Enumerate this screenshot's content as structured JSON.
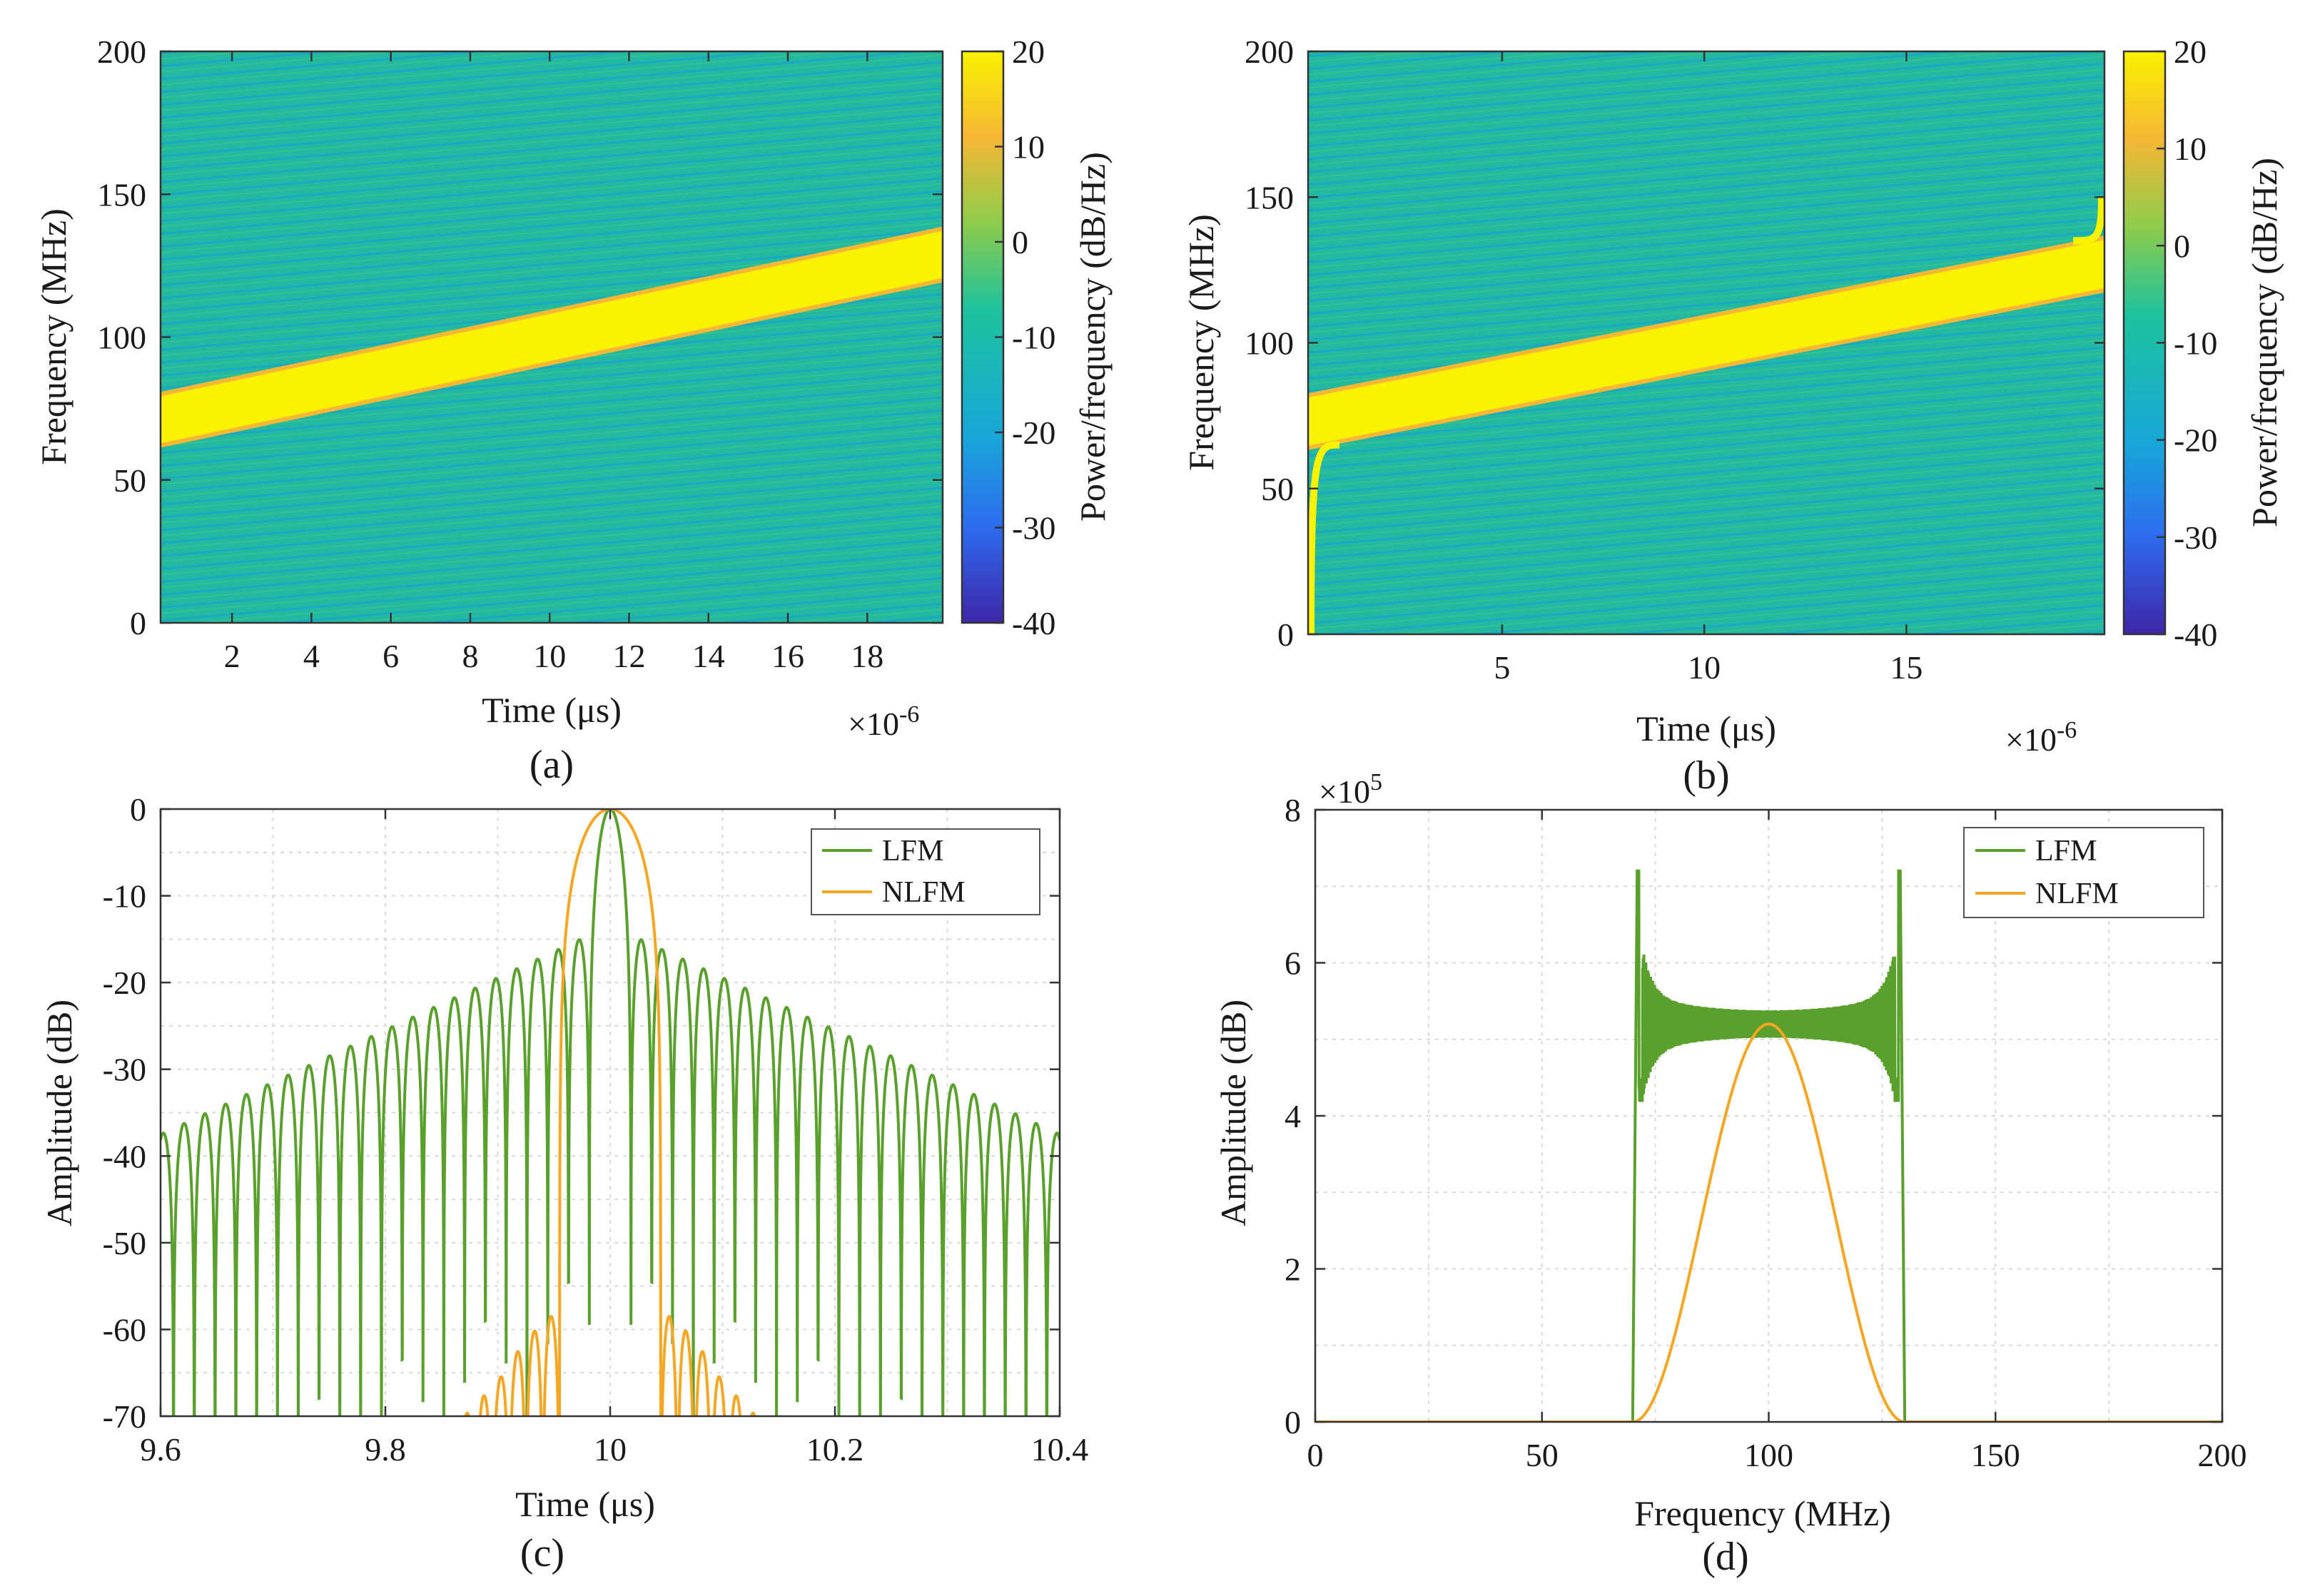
{
  "colors": {
    "lfm": "#5aa02c",
    "nlfm": "#f5a623",
    "band": "#f9f200",
    "background_field": "#22b9a0",
    "colorbar": [
      "#3e26a8",
      "#2e6cef",
      "#17a8d8",
      "#1fc29c",
      "#8fcc4b",
      "#f6b735",
      "#f9f200"
    ]
  },
  "chart_data": [
    {
      "id": "a",
      "type": "heatmap",
      "panel_label": "(a)",
      "xlabel": "Time (μs)",
      "ylabel": "Frequency (MHz)",
      "x_exponent": "×10",
      "x_exponent_power": "-6",
      "xlim": [
        0.2,
        19.9
      ],
      "ylim": [
        0,
        200
      ],
      "xticks": [
        2,
        4,
        6,
        8,
        10,
        12,
        14,
        16,
        18
      ],
      "xtick_labels": [
        "2",
        "4",
        "6",
        "8",
        "10",
        "12",
        "14",
        "16",
        "18"
      ],
      "yticks": [
        0,
        50,
        100,
        150,
        200
      ],
      "ytick_labels": [
        "0",
        "50",
        "100",
        "150",
        "200"
      ],
      "chirp": {
        "t_start": 0.2,
        "f_start": 70,
        "t_end": 19.9,
        "f_end": 130,
        "bandwidth": 18
      },
      "colorbar": {
        "label": "Power/frequency (dB/Hz)",
        "range": [
          -40,
          20
        ],
        "ticks": [
          20,
          10,
          0,
          -10,
          -20,
          -30,
          -40
        ],
        "tick_labels": [
          "20",
          "10",
          "0",
          "-10",
          "-20",
          "-30",
          "-40"
        ]
      }
    },
    {
      "id": "b",
      "type": "heatmap",
      "panel_label": "(b)",
      "xlabel": "Time (μs)",
      "ylabel": "Frequency (MHz)",
      "x_exponent": "×10",
      "x_exponent_power": "-6",
      "xlim": [
        0.2,
        19.9
      ],
      "ylim": [
        0,
        200
      ],
      "xticks": [
        5,
        10,
        15
      ],
      "xtick_labels": [
        "5",
        "10",
        "15"
      ],
      "yticks": [
        0,
        50,
        100,
        150,
        200
      ],
      "ytick_labels": [
        "0",
        "50",
        "100",
        "150",
        "200"
      ],
      "chirp": {
        "t_start": 0.2,
        "f_start": 72,
        "t_end": 19.9,
        "f_end": 128,
        "bandwidth": 18,
        "edge_spike_low": 0,
        "edge_spike_high": 150
      },
      "colorbar": {
        "label": "Power/frequency (dB/Hz)",
        "range": [
          -40,
          20
        ],
        "ticks": [
          20,
          10,
          0,
          -10,
          -20,
          -30,
          -40
        ],
        "tick_labels": [
          "20",
          "10",
          "0",
          "-10",
          "-20",
          "-30",
          "-40"
        ]
      }
    },
    {
      "id": "c",
      "type": "line",
      "panel_label": "(c)",
      "xlabel": "Time (μs)",
      "ylabel": "Amplitude (dB)",
      "xlim": [
        9.6,
        10.4
      ],
      "ylim": [
        -70,
        0
      ],
      "xticks": [
        9.6,
        9.8,
        10,
        10.2,
        10.4
      ],
      "xtick_labels": [
        "9.6",
        "9.8",
        "10",
        "10.2",
        "10.4"
      ],
      "yticks": [
        0,
        -10,
        -20,
        -30,
        -40,
        -50,
        -60,
        -70
      ],
      "ytick_labels": [
        "0",
        "-10",
        "-20",
        "-30",
        "-40",
        "-50",
        "-60",
        "-70"
      ],
      "grid": true,
      "legend": "top-right",
      "series": [
        {
          "name": "LFM",
          "model": "sinc",
          "center": 10.0,
          "null_spacing": 0.0185,
          "peak_db": 0,
          "sidelobe_envelope_db": [
            [
              0.0,
              -13.4
            ],
            [
              0.4,
              -37.5
            ]
          ]
        },
        {
          "name": "NLFM",
          "model": "tapered",
          "center": 10.0,
          "mainlobe_halfwidth": 0.045,
          "peak_db": 0,
          "sidelobe_peaks_db": [
            [
              0.054,
              -58.5
            ],
            [
              0.07,
              -60.5
            ],
            [
              0.085,
              -63
            ],
            [
              0.1,
              -66
            ],
            [
              0.115,
              -68
            ],
            [
              0.13,
              -70
            ]
          ]
        }
      ]
    },
    {
      "id": "d",
      "type": "line",
      "panel_label": "(d)",
      "xlabel": "Frequency (MHz)",
      "ylabel": "Amplitude (dB)",
      "y_exponent": "×10",
      "y_exponent_power": "5",
      "xlim": [
        0,
        200
      ],
      "ylim": [
        0,
        8
      ],
      "xticks": [
        0,
        50,
        100,
        150,
        200
      ],
      "xtick_labels": [
        "0",
        "50",
        "100",
        "150",
        "200"
      ],
      "yticks": [
        0,
        2,
        4,
        6,
        8
      ],
      "ytick_labels": [
        "0",
        "2",
        "4",
        "6",
        "8"
      ],
      "grid": true,
      "legend": "top-right",
      "series": [
        {
          "name": "LFM",
          "model": "rectangular",
          "f_low": 71,
          "f_high": 129,
          "level": 5.2,
          "ripple_min": 4.9,
          "ripple_max": 5.5,
          "edge_peak": 7.2,
          "edge_dip": 4.2
        },
        {
          "name": "NLFM",
          "model": "bell",
          "center": 100,
          "peak": 5.2,
          "f_low": 70,
          "f_high": 130
        }
      ]
    }
  ]
}
